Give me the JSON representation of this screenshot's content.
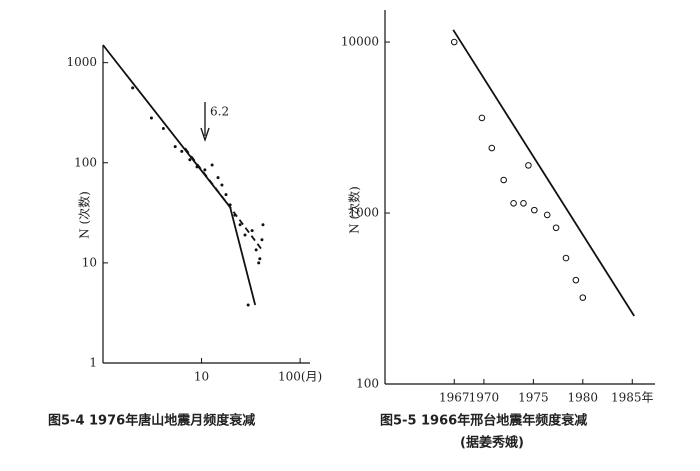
{
  "chart_data": [
    {
      "type": "scatter",
      "xlog": true,
      "ylog": true,
      "title": "图5-4  1976年唐山地震月频度衰减",
      "ylabel": "N (次数)",
      "annotation": "6.2",
      "xlim": [
        1,
        126
      ],
      "ylim": [
        1,
        1500
      ],
      "xticks": [
        10,
        {
          "value": 100,
          "label": "100(月)"
        }
      ],
      "yticks": [
        1,
        10,
        100,
        1000
      ],
      "series": [
        {
          "mode": "markers",
          "marker": "dot",
          "color": "#111",
          "x": [
            2.0,
            3.1,
            4.1,
            5.4,
            6.3,
            7.6,
            9.0,
            10.8,
            12.8,
            14.7,
            16.1,
            17.7,
            19.5,
            21.8,
            24.6,
            27.6,
            29.7,
            32.6,
            35.8,
            39,
            41,
            42,
            38
          ],
          "values": [
            560,
            280,
            220,
            145,
            130,
            107,
            91,
            85,
            95,
            71,
            60,
            48,
            38,
            30,
            24,
            19,
            3.8,
            21,
            13.5,
            11,
            17,
            24,
            10
          ]
        },
        {
          "mode": "lines",
          "dash": false,
          "color": "#111",
          "x": [
            1,
            19.5,
            35
          ],
          "values": [
            1500,
            36,
            3.8
          ]
        },
        {
          "mode": "lines",
          "dash": true,
          "color": "#111",
          "x": [
            6.8,
            19.5,
            41
          ],
          "values": [
            140,
            36,
            13.5
          ]
        }
      ]
    },
    {
      "type": "scatter",
      "xlog": false,
      "ylog": true,
      "title": "图5-5  1966年邢台地震年频度衰减",
      "subtitle": "(据姜秀娥)",
      "ylabel": "N (次数)",
      "xlim": [
        1960,
        1987.3
      ],
      "ylim": [
        100,
        15400
      ],
      "xticks": [
        1967,
        1970,
        1975,
        1980,
        {
          "value": 1985,
          "label": "1985年"
        }
      ],
      "yticks": [
        100,
        1000,
        10000
      ],
      "series": [
        {
          "mode": "markers",
          "marker": "circle",
          "color": "#111",
          "x": [
            1967,
            1969.8,
            1970.8,
            1972,
            1973,
            1974,
            1974.5,
            1975.1,
            1976.4,
            1977.3,
            1978.3,
            1979.3,
            1980
          ],
          "values": [
            10000,
            3600,
            2400,
            1560,
            1140,
            1140,
            1900,
            1040,
            975,
            820,
            545,
            405,
            320
          ]
        },
        {
          "mode": "lines",
          "dash": false,
          "color": "#111",
          "x": [
            1966.9,
            1985.2
          ],
          "values": [
            11800,
            250
          ]
        }
      ]
    }
  ]
}
